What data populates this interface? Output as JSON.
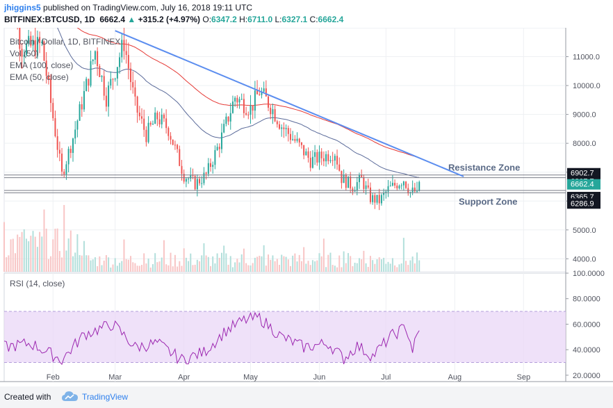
{
  "header": {
    "author": "jhiggins5",
    "published_text": "published on TradingView.com, July 16, 2018 19:11 UTC",
    "symbol": "BITFINEX:BTCUSD, 1D",
    "last": "6662.4",
    "change": "+315.2 (+4.97%)",
    "o_label": "O:",
    "o": "6347.2",
    "h_label": "H:",
    "h": "6711.0",
    "l_label": "L:",
    "l": "6327.1",
    "c_label": "C:",
    "c": "6662.4"
  },
  "footer": {
    "created_with": "Created with",
    "brand": "TradingView"
  },
  "colors": {
    "up": "#26a69a",
    "down": "#ef5350",
    "ema50": "#5b6b9a",
    "ema100": "#e53935",
    "trend": "#5b8def",
    "rsi": "#9c27b0",
    "rsi_band": "#e9d7f7"
  },
  "chart_data": [
    {
      "type": "candlestick",
      "legend": [
        "Bitcoin / Dollar, 1D, BITFINEX",
        "Vol (50)",
        "EMA (100, close)",
        "EMA (50, close)"
      ],
      "x_ticks": [
        "Feb",
        "Mar",
        "Apr",
        "May",
        "Jun",
        "Jul",
        "Aug",
        "Sep"
      ],
      "x_range": [
        "2018-01-10",
        "2018-09-20"
      ],
      "y_ticks": [
        4000.0,
        5000.0,
        6000.0,
        7000.0,
        8000.0,
        9000.0,
        10000.0,
        11000.0
      ],
      "y_tick_labels": [
        "4000.0",
        "5000.0",
        "6000.0",
        "7000.0",
        "8000.0",
        "9000.0",
        "10000.0",
        "11000.0"
      ],
      "ylim": [
        3550,
        12000
      ],
      "price_labels": [
        "6902.7",
        "6807.7",
        "6662.4",
        "6365.7",
        "6286.9"
      ],
      "zones": [
        {
          "name": "Resistance Zone",
          "low": 6807.7,
          "high": 6902.7
        },
        {
          "name": "Support Zone",
          "low": 6286.9,
          "high": 6365.7
        }
      ],
      "trendline": [
        [
          "2018-03-01",
          11900
        ],
        [
          "2018-08-05",
          6850
        ]
      ],
      "key_closes": [
        [
          "2018-01-10",
          14000
        ],
        [
          "2018-01-18",
          11300
        ],
        [
          "2018-01-27",
          11400
        ],
        [
          "2018-02-05",
          6900
        ],
        [
          "2018-02-10",
          8200
        ],
        [
          "2018-02-20",
          11200
        ],
        [
          "2018-02-25",
          9600
        ],
        [
          "2018-03-05",
          11500
        ],
        [
          "2018-03-10",
          9300
        ],
        [
          "2018-03-15",
          8300
        ],
        [
          "2018-03-20",
          8900
        ],
        [
          "2018-03-25",
          8500
        ],
        [
          "2018-04-01",
          6900
        ],
        [
          "2018-04-06",
          6600
        ],
        [
          "2018-04-11",
          6900
        ],
        [
          "2018-04-17",
          8000
        ],
        [
          "2018-04-24",
          9600
        ],
        [
          "2018-05-01",
          9200
        ],
        [
          "2018-05-05",
          9800
        ],
        [
          "2018-05-10",
          9300
        ],
        [
          "2018-05-15",
          8600
        ],
        [
          "2018-05-22",
          8000
        ],
        [
          "2018-05-28",
          7400
        ],
        [
          "2018-06-05",
          7600
        ],
        [
          "2018-06-08",
          7700
        ],
        [
          "2018-06-11",
          6800
        ],
        [
          "2018-06-16",
          6500
        ],
        [
          "2018-06-20",
          6750
        ],
        [
          "2018-06-24",
          6100
        ],
        [
          "2018-06-28",
          6000
        ],
        [
          "2018-07-02",
          6400
        ],
        [
          "2018-07-06",
          6600
        ],
        [
          "2018-07-09",
          6750
        ],
        [
          "2018-07-12",
          6300
        ],
        [
          "2018-07-15",
          6347.2
        ],
        [
          "2018-07-16",
          6662.4
        ]
      ],
      "rsi": {
        "label": "RSI (14, close)",
        "y_ticks": [
          "100.0000",
          "80.0000",
          "60.0000",
          "40.0000",
          "20.0000"
        ],
        "ylim": [
          15,
          100
        ],
        "band": [
          30,
          70
        ],
        "key_values": [
          [
            "2018-01-10",
            42
          ],
          [
            "2018-01-22",
            45
          ],
          [
            "2018-02-05",
            32
          ],
          [
            "2018-02-15",
            52
          ],
          [
            "2018-02-28",
            60
          ],
          [
            "2018-03-10",
            42
          ],
          [
            "2018-03-20",
            45
          ],
          [
            "2018-03-31",
            32
          ],
          [
            "2018-04-10",
            38
          ],
          [
            "2018-04-20",
            55
          ],
          [
            "2018-04-28",
            63
          ],
          [
            "2018-05-05",
            65
          ],
          [
            "2018-05-15",
            50
          ],
          [
            "2018-05-25",
            42
          ],
          [
            "2018-06-05",
            45
          ],
          [
            "2018-06-12",
            33
          ],
          [
            "2018-06-18",
            43
          ],
          [
            "2018-06-25",
            35
          ],
          [
            "2018-07-03",
            50
          ],
          [
            "2018-07-10",
            58
          ],
          [
            "2018-07-13",
            40
          ],
          [
            "2018-07-16",
            55
          ]
        ]
      }
    }
  ]
}
